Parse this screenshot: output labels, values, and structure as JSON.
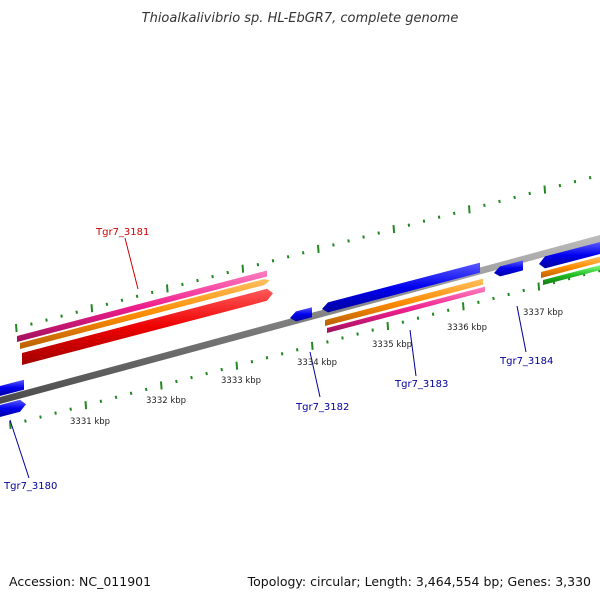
{
  "title": "Thioalkalivibrio sp. HL-EbGR7, complete genome",
  "footer": {
    "accession": "Accession: NC_011901",
    "summary": "Topology: circular; Length: 3,464,554 bp; Genes: 3,330"
  },
  "scale_labels": [
    "3331 kbp",
    "3332 kbp",
    "3333 kbp",
    "3334 kbp",
    "3335 kbp",
    "3336 kbp",
    "3337 kbp"
  ],
  "gene_labels": [
    {
      "text": "Tgr7_3181",
      "color": "#cc0000"
    },
    {
      "text": "Tgr7_3182",
      "color": "#000099"
    },
    {
      "text": "Tgr7_3183",
      "color": "#000099"
    },
    {
      "text": "Tgr7_3184",
      "color": "#000099"
    },
    {
      "text": "Tgr7_3180",
      "color": "#000099"
    }
  ],
  "colors": {
    "backbone": "#808080",
    "tick": "#228822",
    "cds": "#0000ee",
    "gene_red": "#ee0000",
    "orange": "#ff8c00",
    "pink": "#ee1e8c",
    "green": "#22bb22"
  }
}
